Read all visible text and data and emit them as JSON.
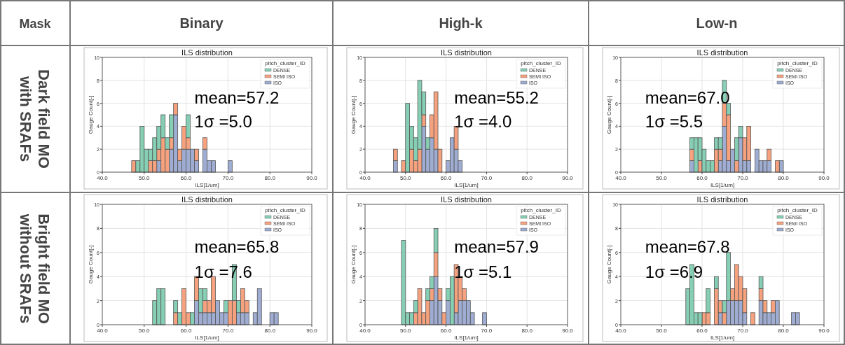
{
  "chart_data": [
    {
      "type": "other",
      "annotations": [
        "Mask",
        "Binary",
        "High-k",
        "Low-n",
        "Dark field MO with SRAFs",
        "Bright field MO without SRAFs"
      ]
    },
    {
      "type": "bar",
      "title": "ILS distribution",
      "xlabel": "ILS[1/um]",
      "ylabel": "Gauge Count[-]",
      "legend_title": "pitch_cluster_ID",
      "legend": "top right",
      "stacked": true,
      "grid": true,
      "xlim": [
        40,
        90
      ],
      "xticks": [
        {
          "value": 40,
          "label": "40.0"
        },
        {
          "value": 50,
          "label": "50.0"
        },
        {
          "value": 60,
          "label": "60.0"
        },
        {
          "value": 70,
          "label": "70.0"
        },
        {
          "value": 80,
          "label": "80.0"
        },
        {
          "value": 90,
          "label": "90.0"
        }
      ],
      "ylim": [
        0,
        10
      ],
      "yticks": [
        0,
        2,
        4,
        6,
        8,
        10
      ],
      "annotations": [
        "mean=57.2",
        "1σ =5.0"
      ],
      "x": [
        47.5,
        48.5,
        49.5,
        50.5,
        51.5,
        52.5,
        53.5,
        54.5,
        55.5,
        56.5,
        57.5,
        58.5,
        59.5,
        60.5,
        61.5,
        62.5,
        63.5,
        64.5,
        65.5,
        66.5,
        67.5,
        68.5,
        69.5,
        70.5
      ],
      "series": [
        {
          "name": "ISO",
          "color": "#9fadd3",
          "values": [
            0,
            0,
            0,
            0,
            0,
            0,
            1,
            0,
            0,
            2,
            5,
            1,
            2,
            2,
            2,
            1,
            0,
            2,
            1,
            1,
            0,
            0,
            0,
            1
          ]
        },
        {
          "name": "SEMI ISO",
          "color": "#f7a27f",
          "values": [
            1,
            0,
            0,
            0,
            1,
            1,
            1,
            3,
            2,
            1,
            1,
            1,
            2,
            1,
            0,
            1,
            0,
            1,
            0,
            0,
            0,
            0,
            0,
            0
          ]
        },
        {
          "name": "DENSE",
          "color": "#86cfb4",
          "values": [
            0,
            1,
            4,
            2,
            1,
            2,
            2,
            2,
            1,
            2,
            0,
            0,
            0,
            2,
            0,
            0,
            0,
            0,
            0,
            0,
            0,
            0,
            0,
            0
          ]
        }
      ]
    },
    {
      "type": "bar",
      "title": "ILS distribution",
      "xlabel": "ILS[1/um]",
      "ylabel": "Gauge Count[-]",
      "legend_title": "pitch_cluster_ID",
      "legend": "top right",
      "stacked": true,
      "grid": true,
      "xlim": [
        40,
        90
      ],
      "xticks": [
        {
          "value": 40,
          "label": "40.0"
        },
        {
          "value": 50,
          "label": "50.0"
        },
        {
          "value": 60,
          "label": "60.0"
        },
        {
          "value": 70,
          "label": "70.0"
        },
        {
          "value": 80,
          "label": "80.0"
        },
        {
          "value": 90,
          "label": "90.0"
        }
      ],
      "ylim": [
        0,
        10
      ],
      "yticks": [
        0,
        2,
        4,
        6,
        8,
        10
      ],
      "annotations": [
        "mean=55.2",
        "1σ =4.0"
      ],
      "x": [
        47.5,
        48.5,
        49.5,
        50.5,
        51.5,
        52.5,
        53.5,
        54.5,
        55.5,
        56.5,
        57.5,
        58.5,
        59.5,
        60.5,
        61.5,
        62.5,
        63.5
      ],
      "series": [
        {
          "name": "ISO",
          "color": "#9fadd3",
          "values": [
            1,
            0,
            0,
            0,
            0,
            0,
            0,
            4,
            2,
            3,
            2,
            0,
            0,
            1,
            3,
            2,
            1
          ]
        },
        {
          "name": "SEMI ISO",
          "color": "#f7a27f",
          "values": [
            1,
            0,
            1,
            0,
            2,
            1,
            2,
            1,
            0,
            2,
            5,
            2,
            0,
            0,
            0,
            2,
            0
          ]
        },
        {
          "name": "DENSE",
          "color": "#86cfb4",
          "values": [
            0,
            0,
            0,
            6,
            2,
            2,
            6,
            2,
            1,
            0,
            0,
            0,
            0,
            0,
            0,
            0,
            0
          ]
        }
      ]
    },
    {
      "type": "bar",
      "title": "ILS distribution",
      "xlabel": "ILS[1/um]",
      "ylabel": "Gauge Count[-]",
      "legend_title": "pitch_cluster_ID",
      "legend": "top right",
      "stacked": true,
      "grid": true,
      "xlim": [
        40,
        90
      ],
      "xticks": [
        {
          "value": 40,
          "label": "40.0"
        },
        {
          "value": 50,
          "label": "50.0"
        },
        {
          "value": 60,
          "label": "60.0"
        },
        {
          "value": 70,
          "label": "70.0"
        },
        {
          "value": 80,
          "label": "80.0"
        },
        {
          "value": 90,
          "label": "90.0"
        }
      ],
      "ylim": [
        0,
        10
      ],
      "yticks": [
        0,
        2,
        4,
        6,
        8,
        10
      ],
      "annotations": [
        "mean=67.0",
        "1σ =5.5"
      ],
      "x": [
        57.5,
        58.5,
        59.5,
        60.5,
        61.5,
        62.5,
        63.5,
        64.5,
        65.5,
        66.5,
        67.5,
        68.5,
        69.5,
        70.5,
        71.5,
        72.5,
        73.5,
        74.5,
        75.5,
        76.5,
        77.5,
        78.5,
        79.5
      ],
      "series": [
        {
          "name": "ISO",
          "color": "#9fadd3",
          "values": [
            1,
            0,
            0,
            0,
            0,
            0,
            0,
            1,
            4,
            1,
            2,
            0,
            3,
            1,
            1,
            0,
            2,
            1,
            1,
            1,
            0,
            0,
            1
          ]
        },
        {
          "name": "SEMI ISO",
          "color": "#f7a27f",
          "values": [
            1,
            0,
            1,
            0,
            0,
            0,
            2,
            1,
            2,
            4,
            0,
            1,
            0,
            2,
            3,
            0,
            0,
            0,
            0,
            1,
            0,
            1,
            0
          ]
        },
        {
          "name": "DENSE",
          "color": "#86cfb4",
          "values": [
            1,
            3,
            2,
            2,
            1,
            1,
            1,
            1,
            2,
            1,
            0,
            2,
            1,
            0,
            0,
            0,
            0,
            0,
            0,
            0,
            0,
            0,
            0
          ]
        }
      ]
    },
    {
      "type": "bar",
      "title": "ILS distribution",
      "xlabel": "ILS[1/um]",
      "ylabel": "Gauge Count[-]",
      "legend_title": "pitch_cluster_ID",
      "legend": "top right",
      "stacked": true,
      "grid": true,
      "xlim": [
        40,
        90
      ],
      "xticks": [
        {
          "value": 40,
          "label": "40.0"
        },
        {
          "value": 50,
          "label": "50.0"
        },
        {
          "value": 60,
          "label": "60.0"
        },
        {
          "value": 70,
          "label": "70.0"
        },
        {
          "value": 80,
          "label": "80.0"
        },
        {
          "value": 90,
          "label": "90.0"
        }
      ],
      "ylim": [
        0,
        10
      ],
      "yticks": [
        0,
        2,
        4,
        6,
        8,
        10
      ],
      "annotations": [
        "mean=65.8",
        "1σ =7.6"
      ],
      "x": [
        52.5,
        53.5,
        54.5,
        55.5,
        56.5,
        57.5,
        58.5,
        59.5,
        60.5,
        61.5,
        62.5,
        63.5,
        64.5,
        65.5,
        66.5,
        67.5,
        68.5,
        69.5,
        70.5,
        71.5,
        72.5,
        73.5,
        74.5,
        75.5,
        76.5,
        77.5,
        78.5,
        79.5,
        80.5,
        81.5
      ],
      "series": [
        {
          "name": "ISO",
          "color": "#9fadd3",
          "values": [
            0,
            0,
            0,
            0,
            0,
            0,
            0,
            0,
            0,
            0,
            2,
            1,
            1,
            1,
            1,
            2,
            1,
            1,
            0,
            0,
            1,
            1,
            1,
            0,
            1,
            3,
            0,
            0,
            1,
            1
          ]
        },
        {
          "name": "SEMI ISO",
          "color": "#f7a27f",
          "values": [
            0,
            0,
            0,
            0,
            0,
            1,
            0,
            3,
            1,
            0,
            2,
            0,
            1,
            1,
            3,
            0,
            0,
            0,
            2,
            2,
            0,
            2,
            1,
            0,
            0,
            0,
            0,
            0,
            0,
            0
          ]
        },
        {
          "name": "DENSE",
          "color": "#86cfb4",
          "values": [
            2,
            3,
            3,
            0,
            0,
            1,
            1,
            0,
            0,
            1,
            0,
            2,
            1,
            0,
            0,
            0,
            0,
            1,
            0,
            3,
            1,
            0,
            0,
            0,
            0,
            0,
            0,
            0,
            0,
            0
          ]
        }
      ]
    },
    {
      "type": "bar",
      "title": "ILS distribution",
      "xlabel": "ILS[1/um]",
      "ylabel": "Gauge Count[-]",
      "legend_title": "pitch_cluster_ID",
      "legend": "top right",
      "stacked": true,
      "grid": true,
      "xlim": [
        40,
        90
      ],
      "xticks": [
        {
          "value": 40,
          "label": "40.0"
        },
        {
          "value": 50,
          "label": "50.0"
        },
        {
          "value": 60,
          "label": "60.0"
        },
        {
          "value": 70,
          "label": "70.0"
        },
        {
          "value": 80,
          "label": "80.0"
        },
        {
          "value": 90,
          "label": "90.0"
        }
      ],
      "ylim": [
        0,
        10
      ],
      "yticks": [
        0,
        2,
        4,
        6,
        8,
        10
      ],
      "annotations": [
        "mean=57.9",
        "1σ =5.1"
      ],
      "x": [
        49.5,
        50.5,
        51.5,
        52.5,
        53.5,
        54.5,
        55.5,
        56.5,
        57.5,
        58.5,
        59.5,
        60.5,
        61.5,
        62.5,
        63.5,
        64.5,
        65.5,
        66.5,
        67.5,
        68.5,
        69.5
      ],
      "series": [
        {
          "name": "ISO",
          "color": "#9fadd3",
          "values": [
            0,
            0,
            0,
            0,
            0,
            0,
            0,
            2,
            4,
            2,
            0,
            2,
            0,
            1,
            2,
            2,
            2,
            1,
            0,
            0,
            1
          ]
        },
        {
          "name": "SEMI ISO",
          "color": "#f7a27f",
          "values": [
            0,
            0,
            0,
            1,
            3,
            1,
            2,
            1,
            2,
            1,
            1,
            0,
            0,
            4,
            2,
            1,
            0,
            0,
            0,
            0,
            0
          ]
        },
        {
          "name": "DENSE",
          "color": "#86cfb4",
          "values": [
            7,
            1,
            1,
            1,
            0,
            0,
            1,
            1,
            2,
            0,
            0,
            1,
            4,
            0,
            0,
            0,
            0,
            0,
            0,
            0,
            0
          ]
        }
      ]
    },
    {
      "type": "bar",
      "title": "ILS distribution",
      "xlabel": "ILS[1/um]",
      "ylabel": "Gauge Count[-]",
      "legend_title": "pitch_cluster_ID",
      "legend": "top right",
      "stacked": true,
      "grid": true,
      "xlim": [
        40,
        90
      ],
      "xticks": [
        {
          "value": 40,
          "label": "40.0"
        },
        {
          "value": 50,
          "label": "50.0"
        },
        {
          "value": 60,
          "label": "60.0"
        },
        {
          "value": 70,
          "label": "70.0"
        },
        {
          "value": 80,
          "label": "80.0"
        },
        {
          "value": 90,
          "label": "90.0"
        }
      ],
      "ylim": [
        0,
        10
      ],
      "yticks": [
        0,
        2,
        4,
        6,
        8,
        10
      ],
      "annotations": [
        "mean=67.8",
        "1σ =6.9"
      ],
      "x": [
        56.5,
        57.5,
        58.5,
        59.5,
        60.5,
        61.5,
        62.5,
        63.5,
        64.5,
        65.5,
        66.5,
        67.5,
        68.5,
        69.5,
        70.5,
        71.5,
        72.5,
        73.5,
        74.5,
        75.5,
        76.5,
        77.5,
        78.5,
        79.5,
        80.5,
        81.5,
        82.5,
        83.5
      ],
      "series": [
        {
          "name": "ISO",
          "color": "#9fadd3",
          "values": [
            0,
            0,
            0,
            0,
            0,
            0,
            0,
            0,
            1,
            0,
            2,
            2,
            2,
            2,
            1,
            0,
            0,
            0,
            2,
            1,
            1,
            1,
            2,
            0,
            0,
            0,
            1,
            1
          ]
        },
        {
          "name": "SEMI ISO",
          "color": "#f7a27f",
          "values": [
            0,
            0,
            0,
            0,
            1,
            1,
            0,
            3,
            1,
            1,
            0,
            1,
            3,
            2,
            2,
            0,
            1,
            0,
            1,
            1,
            0,
            1,
            0,
            0,
            0,
            0,
            0,
            0
          ]
        },
        {
          "name": "DENSE",
          "color": "#86cfb4",
          "values": [
            3,
            5,
            1,
            1,
            0,
            2,
            0,
            1,
            0,
            1,
            4,
            0,
            0,
            0,
            0,
            0,
            0,
            0,
            1,
            0,
            0,
            0,
            0,
            0,
            0,
            0,
            0,
            0
          ]
        }
      ]
    }
  ]
}
